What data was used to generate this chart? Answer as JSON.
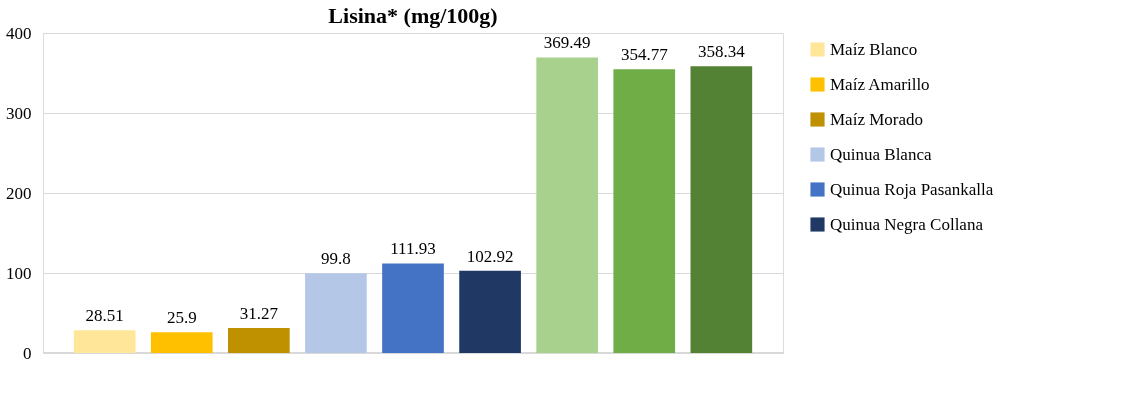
{
  "chart_data": {
    "type": "bar",
    "title": "Lisina* (mg/100g)",
    "categories": [
      null
    ],
    "series": [
      {
        "name": "Maíz Blanco",
        "color": "#ffe699",
        "values": [
          28.51
        ]
      },
      {
        "name": "Maíz Amarillo",
        "color": "#ffc000",
        "values": [
          25.9
        ]
      },
      {
        "name": "Maíz Morado",
        "color": "#bf9000",
        "values": [
          31.27
        ]
      },
      {
        "name": "Quinua Blanca",
        "color": "#b4c7e7",
        "values": [
          99.8
        ]
      },
      {
        "name": "Quinua Roja Pasankalla",
        "color": "#4472c4",
        "values": [
          111.93
        ]
      },
      {
        "name": "Quinua Negra Collana",
        "color": "#203864",
        "values": [
          102.92
        ]
      },
      {
        "color": "#a9d18e",
        "values": [
          369.49
        ]
      },
      {
        "color": "#70ad47",
        "values": [
          354.77
        ]
      },
      {
        "color": "#548235",
        "values": [
          358.34
        ]
      }
    ],
    "ylim": [
      0,
      400
    ],
    "yticks": [
      0,
      100,
      200,
      300,
      400
    ],
    "grid": "y",
    "legend": "right",
    "data_labels": true
  }
}
